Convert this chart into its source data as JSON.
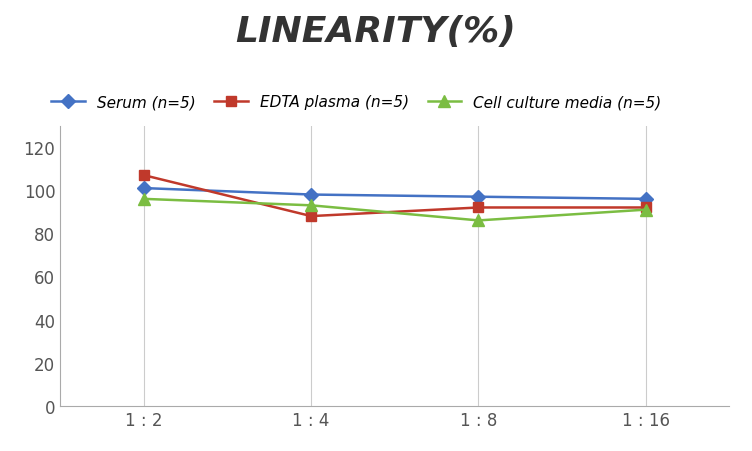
{
  "title": "LINEARITY(%)",
  "title_fontsize": 26,
  "title_style": "italic",
  "title_weight": "bold",
  "x_labels": [
    "1 : 2",
    "1 : 4",
    "1 : 8",
    "1 : 16"
  ],
  "series": [
    {
      "label": "Serum (n=5)",
      "values": [
        101,
        98,
        97,
        96
      ],
      "color": "#4472C4",
      "marker": "D",
      "markersize": 7,
      "linewidth": 1.8
    },
    {
      "label": "EDTA plasma (n=5)",
      "values": [
        107,
        88,
        92,
        92
      ],
      "color": "#C0392B",
      "marker": "s",
      "markersize": 7,
      "linewidth": 1.8
    },
    {
      "label": "Cell culture media (n=5)",
      "values": [
        96,
        93,
        86,
        91
      ],
      "color": "#7BBD42",
      "marker": "^",
      "markersize": 8,
      "linewidth": 1.8
    }
  ],
  "ylim": [
    0,
    130
  ],
  "yticks": [
    0,
    20,
    40,
    60,
    80,
    100,
    120
  ],
  "grid_color": "#CCCCCC",
  "background_color": "#FFFFFF",
  "legend_fontsize": 11,
  "tick_fontsize": 12
}
